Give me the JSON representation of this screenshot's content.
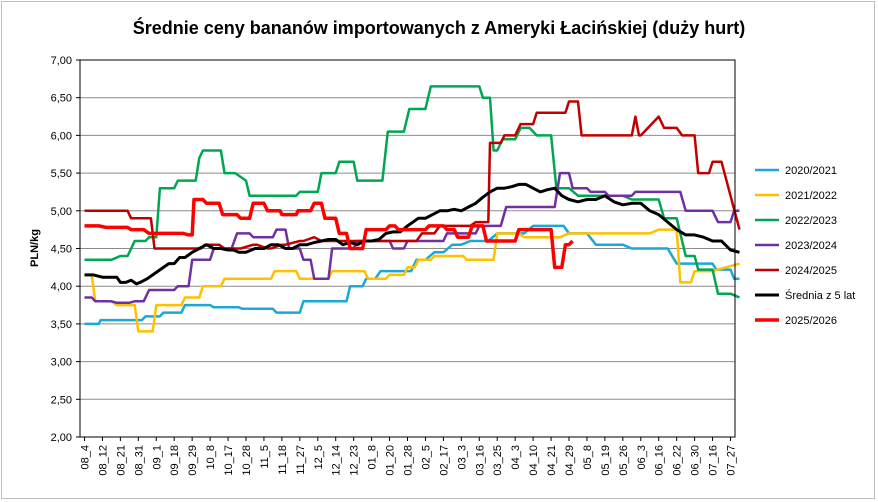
{
  "chart_data": {
    "type": "line",
    "title": "Średnie ceny bananów  importowanych  z Ameryki Łacińskiej  (duży hurt)",
    "ylabel": "PLN/kg",
    "xlabel": "",
    "ylim": [
      2.0,
      7.0
    ],
    "ytick_labels": [
      "2,00",
      "2,50",
      "3,00",
      "3,50",
      "4,00",
      "4,50",
      "5,00",
      "5,50",
      "6,00",
      "6,50",
      "7,00"
    ],
    "xtick_labels": [
      "08_4",
      "08_12",
      "08_21",
      "08_31",
      "09_1",
      "09_18",
      "09_29",
      "10_8",
      "10_17",
      "10_28",
      "11_5",
      "11_18",
      "11_27",
      "12_5",
      "12_14",
      "12_23",
      "01_8",
      "01_20",
      "01_28",
      "02_5",
      "02_17",
      "03_3",
      "03_16",
      "03_25",
      "04_3",
      "04_10",
      "04_21",
      "04_29",
      "05_8",
      "05_19",
      "05_26",
      "06_3",
      "06_16",
      "06_22",
      "06_30",
      "07_16",
      "07_27"
    ],
    "grid": "horizontal",
    "legend_position": "right",
    "series": [
      {
        "name": "2020/2021",
        "color": "#1ba8d6",
        "width": 2.5,
        "x": [
          0,
          0.8,
          0.9,
          3.2,
          3.4,
          4.2,
          4.4,
          5.4,
          5.6,
          7,
          7.2,
          8.6,
          8.8,
          10.5,
          10.7,
          12,
          12.2,
          14.6,
          14.8,
          15.5,
          15.7,
          16.2,
          16.5,
          18.2,
          18.5,
          19,
          19.5,
          20,
          20.5,
          21,
          21.5,
          22.5,
          23,
          24.5,
          25,
          26.7,
          27,
          28,
          28.5,
          30,
          30.5,
          32.5,
          33,
          35,
          35.2,
          36,
          36.2,
          36.5
        ],
        "y": [
          3.5,
          3.5,
          3.55,
          3.55,
          3.6,
          3.6,
          3.65,
          3.65,
          3.75,
          3.75,
          3.72,
          3.72,
          3.7,
          3.7,
          3.65,
          3.65,
          3.8,
          3.8,
          4.0,
          4.0,
          4.1,
          4.1,
          4.2,
          4.2,
          4.35,
          4.35,
          4.45,
          4.45,
          4.55,
          4.55,
          4.6,
          4.6,
          4.7,
          4.7,
          4.8,
          4.8,
          4.7,
          4.7,
          4.55,
          4.55,
          4.5,
          4.5,
          4.3,
          4.3,
          4.22,
          4.22,
          4.1,
          4.1
        ]
      },
      {
        "name": "2021/2022",
        "color": "#ffc000",
        "width": 2.5,
        "x": [
          0,
          0.4,
          0.6,
          1.5,
          1.8,
          2.8,
          3,
          3.2,
          3.8,
          4.0,
          5.4,
          5.6,
          6.4,
          6.6,
          7.6,
          7.8,
          10.4,
          10.6,
          11.8,
          12,
          13.6,
          13.8,
          15.6,
          15.8,
          16.8,
          17,
          17.8,
          18,
          18.4,
          18.6,
          19.3,
          19.5,
          21.1,
          21.3,
          22.8,
          23,
          24.2,
          24.5,
          26.5,
          27,
          31.5,
          32,
          33,
          33.2,
          33.8,
          34,
          35,
          36.5
        ],
        "y": [
          4.15,
          4.15,
          3.8,
          3.8,
          3.75,
          3.75,
          3.4,
          3.4,
          3.4,
          3.75,
          3.75,
          3.85,
          3.85,
          4.0,
          4.0,
          4.1,
          4.1,
          4.2,
          4.2,
          4.1,
          4.1,
          4.2,
          4.2,
          4.1,
          4.1,
          4.15,
          4.15,
          4.25,
          4.25,
          4.35,
          4.35,
          4.4,
          4.4,
          4.35,
          4.35,
          4.7,
          4.7,
          4.65,
          4.65,
          4.7,
          4.7,
          4.75,
          4.75,
          4.05,
          4.05,
          4.2,
          4.2,
          4.3
        ]
      },
      {
        "name": "2022/2023",
        "color": "#00a651",
        "width": 2.5,
        "x": [
          0,
          1.5,
          2,
          2.4,
          2.8,
          3.4,
          3.6,
          4,
          4.2,
          4.4,
          5,
          5.2,
          6.2,
          6.4,
          6.6,
          7.6,
          7.8,
          8.2,
          8.4,
          9,
          9.2,
          11.8,
          12,
          13,
          13.2,
          14,
          14.2,
          15,
          15.2,
          16.6,
          16.9,
          17.8,
          18.1,
          19,
          19.3,
          20,
          20.3,
          22,
          22.2,
          22.6,
          22.8,
          23,
          23.3,
          24,
          24.3,
          24.8,
          25.2,
          26,
          26.3,
          27,
          27.5,
          30,
          30.5,
          32,
          32.3,
          33,
          33.5,
          34,
          34.2,
          35,
          35.3,
          36,
          36.2,
          36.5
        ],
        "y": [
          4.35,
          4.35,
          4.4,
          4.4,
          4.6,
          4.6,
          4.65,
          4.65,
          5.3,
          5.3,
          5.3,
          5.4,
          5.4,
          5.7,
          5.8,
          5.8,
          5.5,
          5.5,
          5.5,
          5.4,
          5.2,
          5.2,
          5.25,
          5.25,
          5.5,
          5.5,
          5.65,
          5.65,
          5.4,
          5.4,
          6.05,
          6.05,
          6.35,
          6.35,
          6.65,
          6.65,
          6.65,
          6.65,
          6.5,
          6.5,
          5.8,
          5.8,
          5.95,
          5.95,
          6.1,
          6.1,
          6.0,
          6.0,
          5.3,
          5.3,
          5.2,
          5.2,
          5.15,
          5.15,
          4.9,
          4.9,
          4.4,
          4.4,
          4.22,
          4.22,
          3.9,
          3.9,
          3.88,
          3.85
        ]
      },
      {
        "name": "2023/2024",
        "color": "#7030a0",
        "width": 2.5,
        "x": [
          0,
          0.4,
          0.6,
          1.5,
          1.8,
          2.5,
          2.8,
          3.3,
          3.6,
          5,
          5.2,
          5.8,
          6,
          7,
          7.2,
          8.2,
          8.5,
          9.2,
          9.4,
          10.5,
          10.7,
          11.2,
          11.4,
          12,
          12.2,
          12.6,
          12.8,
          13.6,
          13.8,
          15,
          15.2,
          17,
          17.2,
          17.8,
          18,
          20,
          20.2,
          21.8,
          22,
          23.2,
          23.5,
          26.2,
          26.5,
          27,
          27.2,
          28,
          28.2,
          29,
          29.2,
          30.5,
          30.7,
          31.5,
          32,
          33.2,
          33.5,
          35,
          35.3,
          36,
          36.2,
          36.5
        ],
        "y": [
          3.85,
          3.85,
          3.8,
          3.8,
          3.78,
          3.78,
          3.8,
          3.8,
          3.95,
          3.95,
          4.0,
          4.0,
          4.35,
          4.35,
          4.5,
          4.5,
          4.7,
          4.7,
          4.65,
          4.65,
          4.75,
          4.75,
          4.5,
          4.5,
          4.35,
          4.35,
          4.1,
          4.1,
          4.5,
          4.5,
          4.6,
          4.6,
          4.5,
          4.5,
          4.6,
          4.6,
          4.7,
          4.7,
          4.8,
          4.8,
          5.05,
          5.05,
          5.5,
          5.5,
          5.3,
          5.3,
          5.25,
          5.25,
          5.2,
          5.2,
          5.25,
          5.25,
          5.25,
          5.25,
          5.0,
          5.0,
          4.85,
          4.85,
          5.0,
          5.0
        ]
      },
      {
        "name": "2024/2025",
        "color": "#c00000",
        "width": 2.5,
        "x": [
          0,
          0.8,
          1,
          2.4,
          2.6,
          3.7,
          3.9,
          4.3,
          4.5,
          5.5,
          5.7,
          6.5,
          6.7,
          7.5,
          7.8,
          8.5,
          8.7,
          9.4,
          9.6,
          10.2,
          10.4,
          11,
          11.2,
          12,
          12.2,
          12.8,
          13.2,
          15.2,
          15.5,
          15.8,
          16,
          17.5,
          17.8,
          18.5,
          18.8,
          19.5,
          19.8,
          20.3,
          20.6,
          21.5,
          21.8,
          22.5,
          22.6,
          23.2,
          23.4,
          24,
          24.3,
          25,
          25.2,
          26,
          26.3,
          26.8,
          27,
          27.5,
          27.7,
          30.5,
          30.7,
          30.9,
          31,
          32,
          32.3,
          33,
          33.3,
          34,
          34.2,
          34.8,
          35,
          35.2,
          35.5,
          36.5
        ],
        "y": [
          5.0,
          5.0,
          5.0,
          5.0,
          4.9,
          4.9,
          4.5,
          4.5,
          4.5,
          4.5,
          4.5,
          4.5,
          4.55,
          4.55,
          4.5,
          4.5,
          4.5,
          4.55,
          4.55,
          4.5,
          4.5,
          4.55,
          4.55,
          4.6,
          4.6,
          4.65,
          4.6,
          4.6,
          4.6,
          4.6,
          4.6,
          4.6,
          4.6,
          4.6,
          4.7,
          4.7,
          4.8,
          4.8,
          4.8,
          4.8,
          4.85,
          4.85,
          5.9,
          5.9,
          6.0,
          6.0,
          6.15,
          6.15,
          6.3,
          6.3,
          6.3,
          6.3,
          6.45,
          6.45,
          6.0,
          6.0,
          6.25,
          6.0,
          6.0,
          6.25,
          6.1,
          6.1,
          6.0,
          6.0,
          5.5,
          5.5,
          5.65,
          5.65,
          5.65,
          4.75
        ]
      },
      {
        "name": "Średnia z 5 lat",
        "color": "#000000",
        "width": 3,
        "x": [
          0,
          0.5,
          1,
          1.8,
          2,
          2.3,
          2.6,
          2.9,
          3.1,
          3.5,
          3.8,
          4.1,
          4.4,
          4.7,
          5.0,
          5.3,
          5.6,
          6.0,
          6.4,
          6.8,
          7.2,
          7.6,
          8.0,
          8.3,
          8.6,
          9.0,
          9.5,
          10.0,
          10.4,
          10.8,
          11.2,
          11.6,
          12.0,
          12.4,
          12.8,
          13.2,
          13.6,
          14.0,
          14.4,
          14.8,
          15.2,
          15.6,
          16.0,
          16.4,
          16.8,
          17.2,
          17.6,
          18.0,
          18.3,
          18.6,
          19.0,
          19.4,
          19.8,
          20.2,
          20.6,
          21.0,
          21.4,
          21.8,
          22.2,
          22.6,
          23.0,
          23.4,
          23.8,
          24.2,
          24.6,
          25.0,
          25.4,
          25.8,
          26.2,
          26.6,
          27.0,
          27.5,
          28.0,
          28.5,
          29.0,
          29.5,
          30.0,
          30.5,
          31.0,
          31.5,
          32.0,
          32.5,
          33.0,
          33.5,
          34.0,
          34.5,
          35.0,
          35.5,
          36.0,
          36.5
        ],
        "y": [
          4.15,
          4.15,
          4.12,
          4.12,
          4.05,
          4.05,
          4.08,
          4.03,
          4.05,
          4.1,
          4.15,
          4.2,
          4.25,
          4.3,
          4.3,
          4.38,
          4.38,
          4.45,
          4.5,
          4.55,
          4.5,
          4.5,
          4.48,
          4.48,
          4.45,
          4.45,
          4.5,
          4.5,
          4.55,
          4.55,
          4.5,
          4.5,
          4.55,
          4.55,
          4.58,
          4.6,
          4.62,
          4.62,
          4.55,
          4.58,
          4.55,
          4.6,
          4.6,
          4.62,
          4.7,
          4.72,
          4.72,
          4.8,
          4.85,
          4.9,
          4.9,
          4.95,
          5.0,
          5.0,
          5.02,
          5.0,
          5.05,
          5.1,
          5.18,
          5.25,
          5.3,
          5.3,
          5.32,
          5.35,
          5.35,
          5.3,
          5.25,
          5.28,
          5.3,
          5.2,
          5.15,
          5.12,
          5.15,
          5.15,
          5.2,
          5.12,
          5.08,
          5.1,
          5.1,
          5.0,
          4.95,
          4.85,
          4.75,
          4.68,
          4.68,
          4.65,
          4.6,
          4.6,
          4.48,
          4.45
        ]
      },
      {
        "name": "2025/2026",
        "color": "#ff0000",
        "width": 3.5,
        "x": [
          0,
          0.8,
          1.2,
          2.4,
          2.6,
          3.3,
          3.6,
          5.5,
          5.8,
          6.0,
          6.1,
          6.6,
          6.8,
          7.5,
          7.7,
          8.5,
          8.7,
          9.2,
          9.4,
          10.0,
          10.2,
          10.9,
          11.0,
          11.8,
          11.9,
          12.6,
          12.8,
          13.2,
          13.4,
          14.0,
          14.2,
          14.6,
          14.8,
          15.5,
          15.7,
          16.8,
          17.0,
          17.3,
          17.5,
          19.0,
          19.2,
          20.0,
          20.2,
          20.6,
          20.8,
          21.4,
          21.6,
          22.2,
          22.4,
          24.0,
          24.2,
          26.0,
          26.2,
          26.6,
          26.8,
          27.0,
          27.2
        ],
        "y": [
          4.8,
          4.8,
          4.78,
          4.78,
          4.75,
          4.75,
          4.7,
          4.7,
          4.68,
          4.68,
          5.15,
          5.15,
          5.1,
          5.1,
          4.95,
          4.95,
          4.9,
          4.9,
          5.1,
          5.1,
          5.0,
          5.0,
          4.95,
          4.95,
          5.0,
          5.0,
          5.1,
          5.1,
          4.9,
          4.9,
          4.7,
          4.7,
          4.5,
          4.5,
          4.75,
          4.75,
          4.8,
          4.8,
          4.75,
          4.75,
          4.8,
          4.8,
          4.75,
          4.75,
          4.65,
          4.65,
          4.8,
          4.8,
          4.6,
          4.6,
          4.75,
          4.75,
          4.25,
          4.25,
          4.55,
          4.55,
          4.6
        ]
      }
    ]
  }
}
